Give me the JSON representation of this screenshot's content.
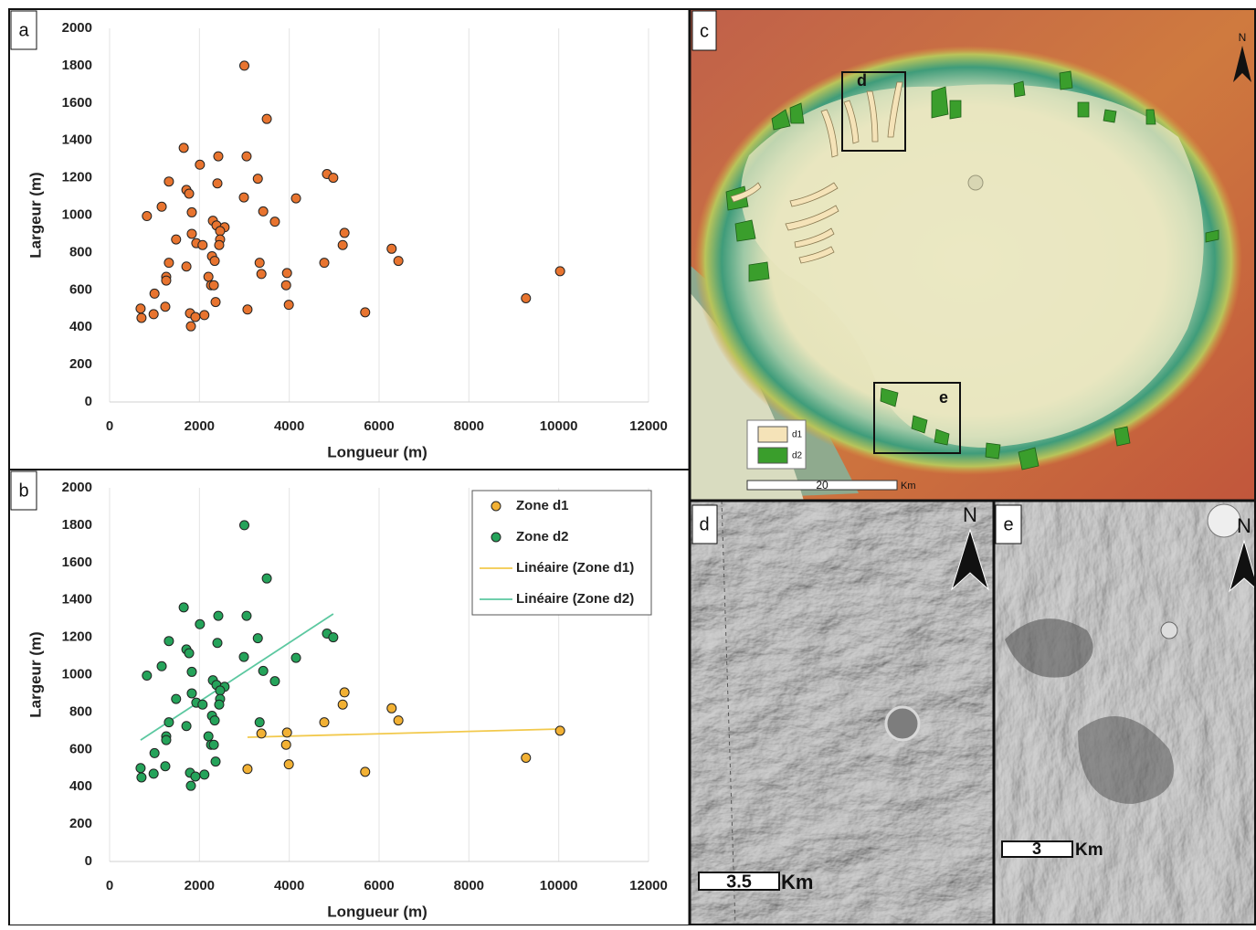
{
  "chart_data": [
    {
      "type": "scatter",
      "panel_label": "a",
      "xlabel": "Longueur (m)",
      "ylabel": "Largeur (m)",
      "x": [
        3000,
        3500,
        1650,
        2420,
        3050,
        2010,
        4840,
        4980,
        3300,
        1320,
        2400,
        1710,
        1770,
        2990,
        4150,
        1160,
        3420,
        1830,
        830,
        2300,
        3680,
        2380,
        2560,
        2460,
        5230,
        1830,
        1930,
        2460,
        1480,
        2070,
        2440,
        5190,
        6280,
        2280,
        6430,
        2340,
        1320,
        3340,
        4780,
        1710,
        10030,
        3950,
        3380,
        2200,
        1260,
        1260,
        3930,
        2260,
        2320,
        1000,
        9270,
        2360,
        3990,
        1240,
        3070,
        690,
        980,
        5690,
        1790,
        2110,
        1910,
        710,
        1810
      ],
      "values": [
        1800,
        1515,
        1360,
        1315,
        1315,
        1270,
        1220,
        1200,
        1195,
        1180,
        1170,
        1135,
        1115,
        1095,
        1090,
        1045,
        1020,
        1015,
        995,
        970,
        965,
        945,
        935,
        915,
        905,
        900,
        850,
        870,
        870,
        840,
        840,
        840,
        820,
        780,
        755,
        755,
        745,
        745,
        745,
        725,
        700,
        690,
        685,
        670,
        670,
        650,
        625,
        625,
        625,
        580,
        555,
        535,
        520,
        510,
        495,
        500,
        470,
        480,
        475,
        465,
        455,
        450,
        405
      ],
      "color": "#e8742f",
      "xlim": [
        0,
        12000
      ],
      "xticks": [
        0,
        2000,
        4000,
        6000,
        8000,
        10000,
        12000
      ],
      "ylim": [
        0,
        2000
      ],
      "yticks": [
        0,
        200,
        400,
        600,
        800,
        1000,
        1200,
        1400,
        1600,
        1800,
        2000
      ],
      "grid": "x"
    },
    {
      "type": "scatter",
      "panel_label": "b",
      "xlabel": "Longueur (m)",
      "ylabel": "Largeur (m)",
      "series": [
        {
          "name": "Zone d1",
          "type": "scatter",
          "color": "#f2b134",
          "x": [
            3070,
            3380,
            3950,
            3990,
            3930,
            4780,
            5230,
            5190,
            6280,
            6430,
            5690,
            9270,
            10030
          ],
          "values": [
            495,
            685,
            690,
            520,
            625,
            745,
            905,
            840,
            820,
            755,
            480,
            555,
            700
          ]
        },
        {
          "name": "Zone d2",
          "type": "scatter",
          "color": "#25a35a",
          "x": [
            3000,
            3500,
            1650,
            2420,
            3050,
            2010,
            4840,
            4980,
            3300,
            1320,
            2400,
            1710,
            1770,
            2990,
            4150,
            1160,
            3420,
            1830,
            830,
            2300,
            3680,
            2380,
            2560,
            2460,
            1830,
            1930,
            2460,
            1480,
            2070,
            2440,
            2280,
            2340,
            1320,
            3340,
            1710,
            2200,
            1260,
            1260,
            2260,
            2320,
            1000,
            2360,
            1240,
            690,
            980,
            1790,
            2110,
            1910,
            710,
            1810
          ],
          "values": [
            1800,
            1515,
            1360,
            1315,
            1315,
            1270,
            1220,
            1200,
            1195,
            1180,
            1170,
            1135,
            1115,
            1095,
            1090,
            1045,
            1020,
            1015,
            995,
            970,
            965,
            945,
            935,
            915,
            900,
            850,
            870,
            870,
            840,
            840,
            780,
            755,
            745,
            745,
            725,
            670,
            670,
            650,
            625,
            625,
            580,
            535,
            510,
            500,
            470,
            475,
            465,
            455,
            450,
            405
          ]
        },
        {
          "name": "Linéaire (Zone d1)",
          "type": "line",
          "color": "#f2c94c",
          "x": [
            3070,
            10030
          ],
          "values": [
            665,
            709
          ]
        },
        {
          "name": "Linéaire (Zone d2)",
          "type": "line",
          "color": "#5cc8a0",
          "x": [
            690,
            4980
          ],
          "values": [
            650,
            1325
          ]
        }
      ],
      "legend": "upper right",
      "xlim": [
        0,
        12000
      ],
      "xticks": [
        0,
        2000,
        4000,
        6000,
        8000,
        10000,
        12000
      ],
      "ylim": [
        0,
        2000
      ],
      "yticks": [
        0,
        200,
        400,
        600,
        800,
        1000,
        1200,
        1400,
        1600,
        1800,
        2000
      ],
      "grid": "x"
    }
  ],
  "panels": [
    {
      "label": "c",
      "boxes": [
        "d",
        "e"
      ],
      "legend": [
        "d1",
        "d2"
      ],
      "scale": "20",
      "unit": "Km",
      "north": "N"
    },
    {
      "label": "d",
      "north": "N",
      "scale": "3.5",
      "unit": "Km"
    },
    {
      "label": "e",
      "north": "N",
      "scale": "3",
      "unit": "Km"
    }
  ]
}
